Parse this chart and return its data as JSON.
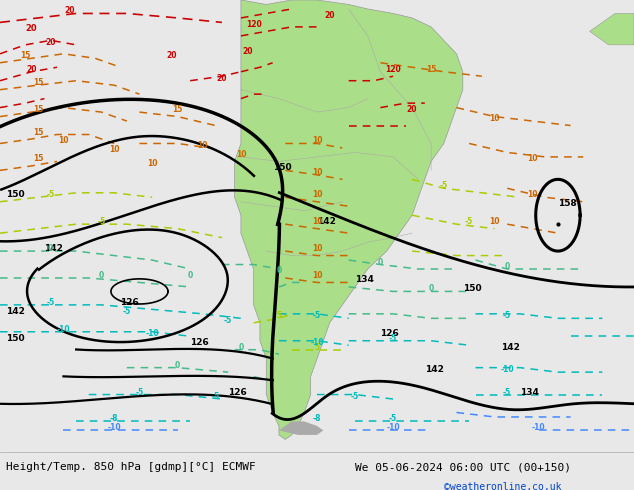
{
  "title_left": "Height/Temp. 850 hPa [gdmp][°C] ECMWF",
  "title_right": "We 05-06-2024 06:00 UTC (00+150)",
  "credit": "©weatheronline.co.uk",
  "fig_width": 6.34,
  "fig_height": 4.9,
  "dpi": 100,
  "bg_color": "#e8e8e8",
  "land_color": "#aade88",
  "ocean_color": "#e8e8e8",
  "bottom_bar_color": "#e8e8e8",
  "bottom_text_color": "#000000",
  "credit_color": "#0044cc",
  "bottom_bar_height": 0.085,
  "font_size_bottom": 8.0,
  "col_red": "#cc0000",
  "col_orange": "#cc6600",
  "col_lyellow": "#99cc00",
  "col_lgreen": "#88cc44",
  "col_teal": "#00aa88",
  "col_cyan": "#00aacc",
  "col_blue": "#0055cc",
  "col_black": "#000000"
}
